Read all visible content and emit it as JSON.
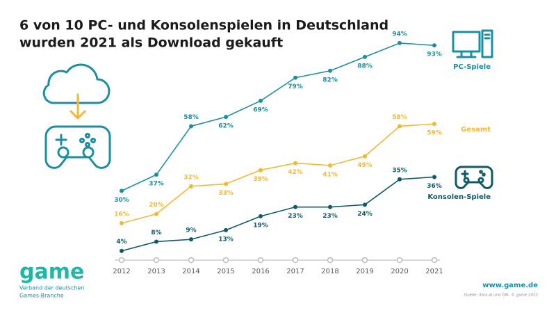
{
  "chart_data": {
    "type": "line",
    "title": [
      "6 von 10 PC- und Konsolenspielen in Deutschland",
      "wurden 2021 als Download gekauft"
    ],
    "categories": [
      "2012",
      "2013",
      "2014",
      "2015",
      "2016",
      "2017",
      "2018",
      "2019",
      "2020",
      "2021"
    ],
    "ylim": [
      0,
      100
    ],
    "series": [
      {
        "name": "PC-Spiele",
        "color": "#1a8fa0",
        "values": [
          30,
          37,
          58,
          62,
          69,
          79,
          82,
          88,
          94,
          93
        ],
        "value_labels": [
          "30%",
          "37%",
          "58%",
          "62%",
          "69%",
          "79%",
          "82%",
          "88%",
          "94%",
          "93%"
        ]
      },
      {
        "name": "Gesamt",
        "color": "#f5b731",
        "values": [
          16,
          20,
          32,
          33,
          39,
          42,
          41,
          45,
          58,
          59
        ],
        "value_labels": [
          "16%",
          "20%",
          "32%",
          "33%",
          "39%",
          "42%",
          "41%",
          "45%",
          "58%",
          "59%"
        ]
      },
      {
        "name": "Konsolen-Spiele",
        "color": "#0e5a6a",
        "values": [
          4,
          8,
          9,
          13,
          19,
          23,
          23,
          24,
          35,
          36
        ],
        "value_labels": [
          "4%",
          "8%",
          "9%",
          "13%",
          "19%",
          "23%",
          "23%",
          "24%",
          "35%",
          "36%"
        ]
      }
    ]
  },
  "footer": {
    "logo": "game",
    "org_lines": [
      "Verband der deutschen",
      "Games-Branche"
    ],
    "url": "www.game.de",
    "source": "Quelle: data.ai und GfK. © game 2022"
  }
}
